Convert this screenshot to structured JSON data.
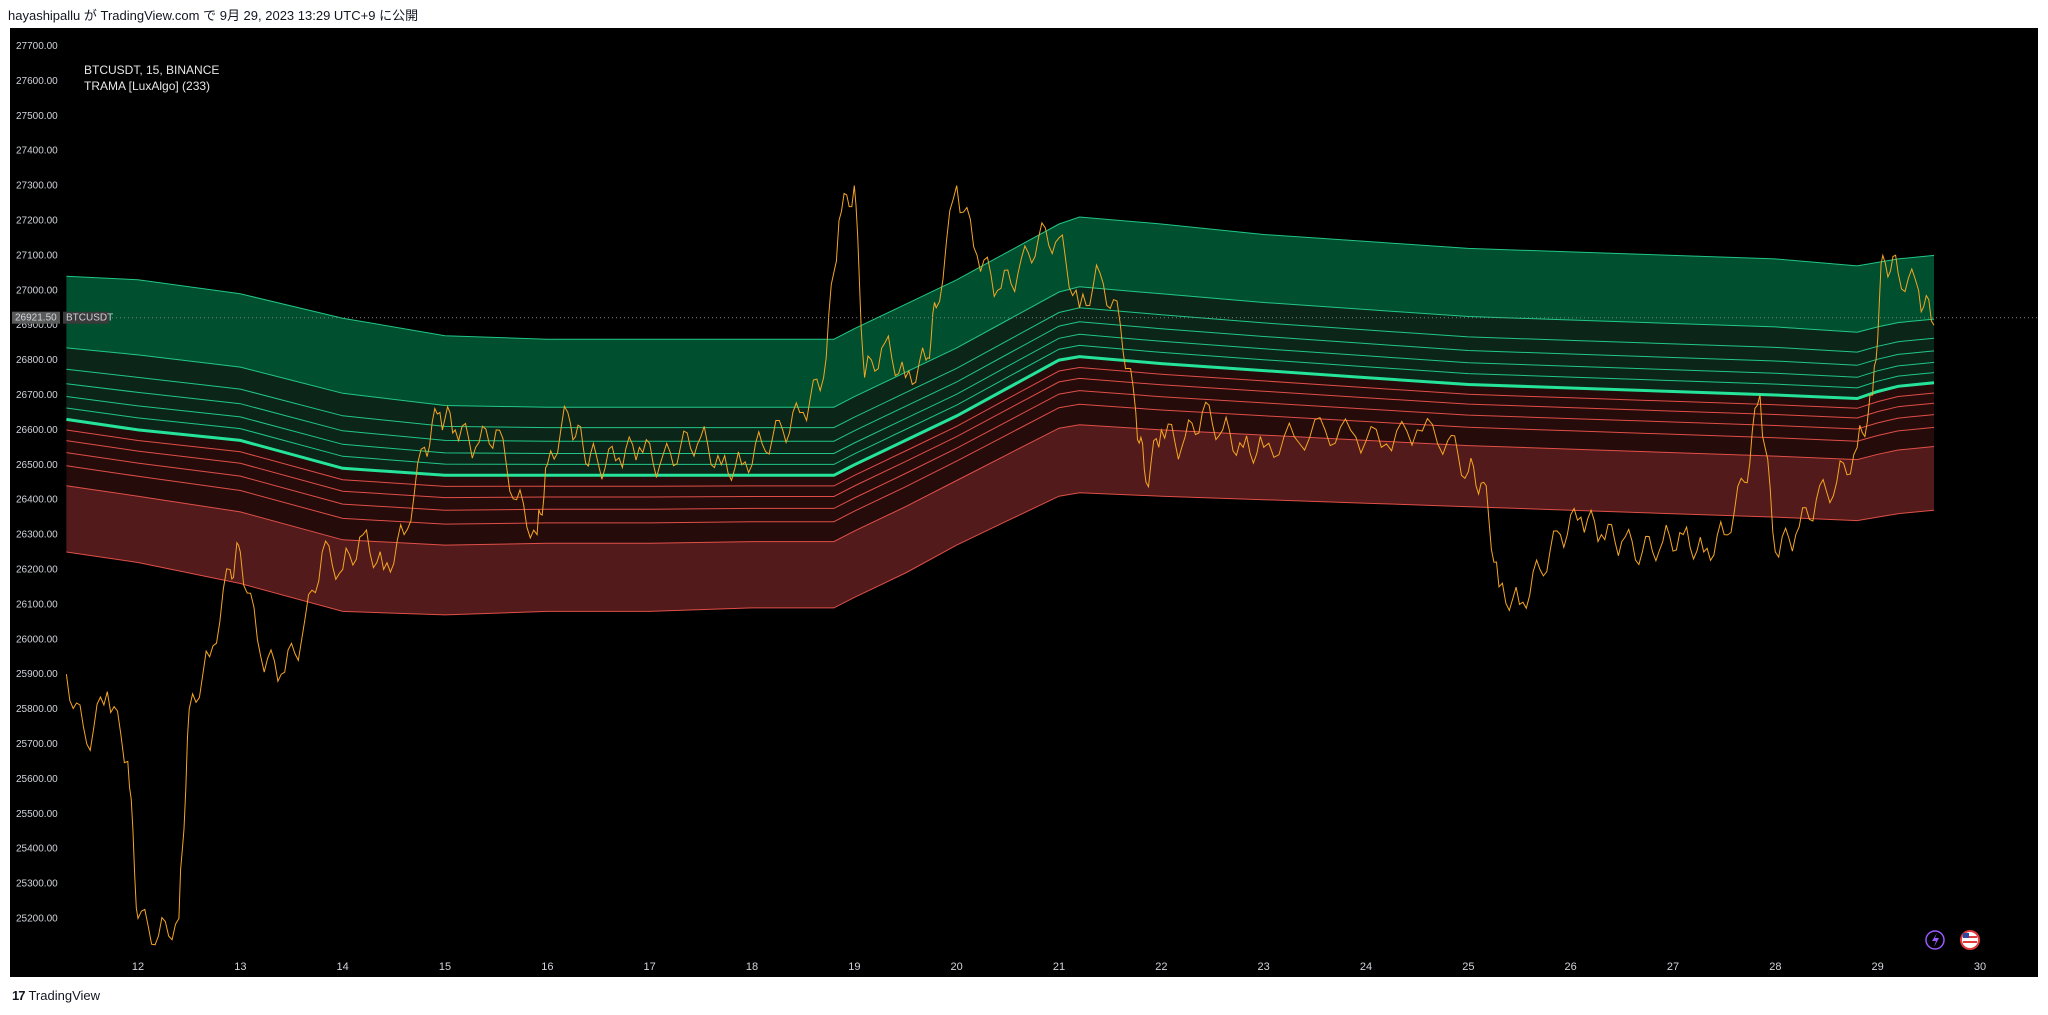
{
  "publish_line": "hayashipallu が TradingView.com で 9月 29, 2023 13:29 UTC+9 に公開",
  "legend": {
    "symbol_line": "BTCUSDT, 15, BINANCE",
    "indicator_line": "TRAMA [LuxAlgo] (233)"
  },
  "price_label": {
    "value": "26921.50",
    "tag": "BTCUSDT"
  },
  "footer": {
    "brand": "TradingView"
  },
  "icons": [
    "lightning-icon",
    "us-flag-icon"
  ],
  "colors": {
    "background": "#000000",
    "price": "#f5a623",
    "bull_fill": "#00693e",
    "bear_fill": "#6e2323",
    "bull_line": "#26e39a",
    "bear_line": "#ff5a52"
  },
  "chart_data": {
    "type": "line",
    "title": "BTCUSDT, 15, BINANCE",
    "indicator": "TRAMA [LuxAlgo] (233)",
    "y_ticks": [
      "27700.00",
      "27600.00",
      "27500.00",
      "27400.00",
      "27300.00",
      "27200.00",
      "27100.00",
      "27000.00",
      "26900.00",
      "26800.00",
      "26700.00",
      "26600.00",
      "26500.00",
      "26400.00",
      "26300.00",
      "26200.00",
      "26100.00",
      "26000.00",
      "25900.00",
      "25800.00",
      "25700.00",
      "25600.00",
      "25500.00",
      "25400.00",
      "25300.00",
      "25200.00"
    ],
    "ylim": [
      25100,
      27750
    ],
    "x_ticks": [
      "12",
      "13",
      "14",
      "15",
      "16",
      "17",
      "18",
      "19",
      "20",
      "21",
      "22",
      "23",
      "24",
      "25",
      "26",
      "27",
      "28",
      "29",
      "30"
    ],
    "x_range": [
      11.3,
      30.25
    ],
    "price_series": {
      "name": "BTCUSDT",
      "x": [
        11.3,
        11.5,
        11.7,
        11.9,
        12.0,
        12.2,
        12.4,
        12.5,
        12.7,
        12.9,
        13.0,
        13.2,
        13.4,
        13.6,
        13.8,
        14.0,
        14.2,
        14.4,
        14.6,
        14.8,
        14.95,
        15.1,
        15.3,
        15.5,
        15.7,
        15.9,
        16.0,
        16.2,
        16.35,
        16.5,
        16.7,
        16.9,
        17.1,
        17.3,
        17.5,
        17.7,
        17.9,
        18.1,
        18.3,
        18.5,
        18.7,
        18.85,
        19.0,
        19.1,
        19.3,
        19.5,
        19.7,
        19.8,
        20.0,
        20.2,
        20.4,
        20.6,
        20.8,
        21.0,
        21.2,
        21.4,
        21.6,
        21.75,
        21.85,
        22.0,
        22.2,
        22.4,
        22.6,
        22.8,
        23.0,
        23.3,
        23.6,
        23.9,
        24.2,
        24.5,
        24.8,
        25.0,
        25.15,
        25.3,
        25.5,
        25.7,
        25.9,
        26.1,
        26.3,
        26.5,
        26.7,
        26.9,
        27.1,
        27.3,
        27.5,
        27.7,
        27.85,
        28.0,
        28.2,
        28.4,
        28.6,
        28.8,
        28.95,
        29.05,
        29.2,
        29.4,
        29.55
      ],
      "y": [
        25900,
        25700,
        25850,
        25650,
        25200,
        25150,
        25200,
        25800,
        25950,
        26200,
        26250,
        25950,
        25900,
        26000,
        26250,
        26200,
        26300,
        26200,
        26300,
        26550,
        26650,
        26600,
        26550,
        26600,
        26400,
        26300,
        26500,
        26650,
        26550,
        26500,
        26520,
        26550,
        26500,
        26550,
        26580,
        26500,
        26500,
        26560,
        26600,
        26650,
        26750,
        27200,
        27300,
        26750,
        26850,
        26750,
        26800,
        26950,
        27300,
        27100,
        27000,
        27050,
        27150,
        27150,
        26950,
        27050,
        26900,
        26650,
        26450,
        26600,
        26550,
        26650,
        26600,
        26550,
        26550,
        26580,
        26600,
        26580,
        26560,
        26600,
        26570,
        26480,
        26450,
        26150,
        26100,
        26200,
        26300,
        26350,
        26300,
        26280,
        26250,
        26280,
        26300,
        26250,
        26300,
        26450,
        26700,
        26250,
        26300,
        26400,
        26450,
        26550,
        26700,
        27100,
        27050,
        27000,
        26900
      ]
    },
    "trama_band_series": {
      "name": "TRAMA [LuxAlgo] (233)",
      "x": [
        11.3,
        12.0,
        13.0,
        14.0,
        15.0,
        16.0,
        17.0,
        18.0,
        18.8,
        19.0,
        19.5,
        20.0,
        20.5,
        21.0,
        21.2,
        22.0,
        23.0,
        24.0,
        25.0,
        26.0,
        27.0,
        28.0,
        28.8,
        29.0,
        29.2,
        29.55
      ],
      "center": [
        26630,
        26600,
        26570,
        26490,
        26470,
        26470,
        26470,
        26470,
        26470,
        26500,
        26570,
        26640,
        26720,
        26800,
        26810,
        26790,
        26770,
        26750,
        26730,
        26720,
        26710,
        26700,
        26690,
        26710,
        26725,
        26735
      ],
      "upper_outer": [
        27040,
        27030,
        26990,
        26920,
        26870,
        26860,
        26860,
        26860,
        26860,
        26890,
        26960,
        27030,
        27110,
        27190,
        27210,
        27190,
        27160,
        27140,
        27120,
        27110,
        27100,
        27090,
        27070,
        27080,
        27090,
        27100
      ],
      "lower_outer": [
        26250,
        26220,
        26160,
        26080,
        26070,
        26080,
        26080,
        26090,
        26090,
        26120,
        26190,
        26270,
        26340,
        26410,
        26420,
        26410,
        26400,
        26390,
        26380,
        26370,
        26360,
        26350,
        26340,
        26350,
        26360,
        26370
      ]
    },
    "current_price": 26921.5,
    "grid": false,
    "legend": "top-left"
  }
}
